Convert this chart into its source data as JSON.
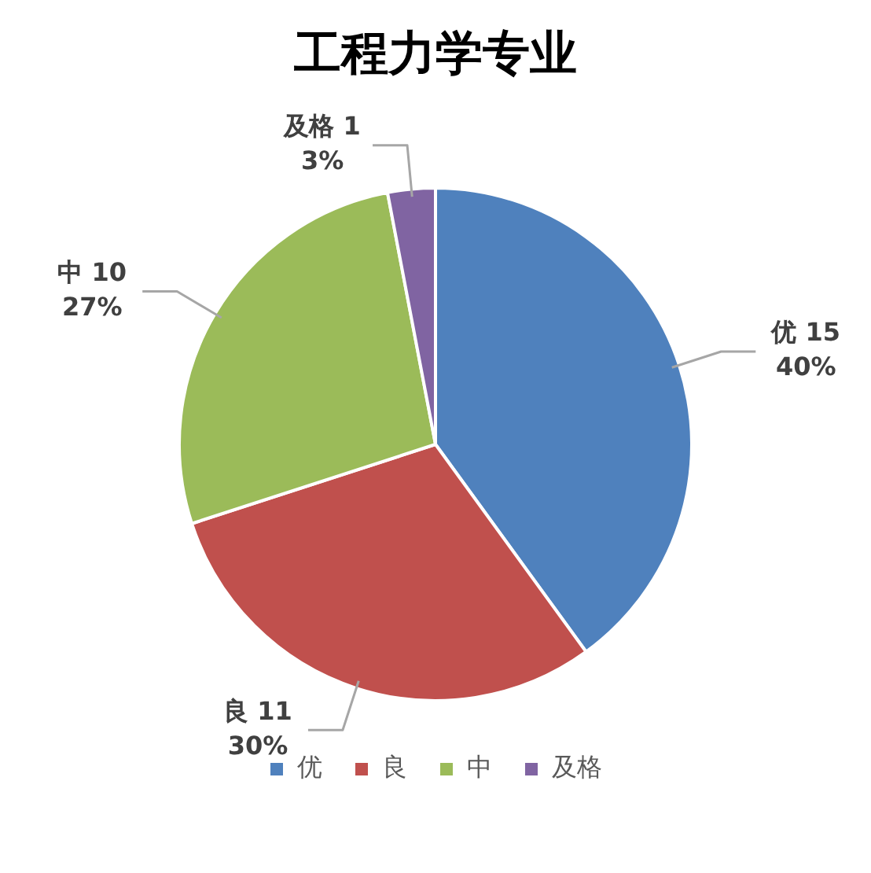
{
  "chart_data": {
    "type": "pie",
    "title": "工程力学专业",
    "categories": [
      "优",
      "良",
      "中",
      "及格"
    ],
    "values": [
      40,
      30,
      27,
      3
    ],
    "colors": [
      "#4f81bd",
      "#c0504d",
      "#9bbb59",
      "#8064a2"
    ],
    "value_labels": [
      "15\n40%",
      "11\n30%",
      "10\n27%",
      "1\n3%"
    ],
    "legend": "bottom"
  }
}
